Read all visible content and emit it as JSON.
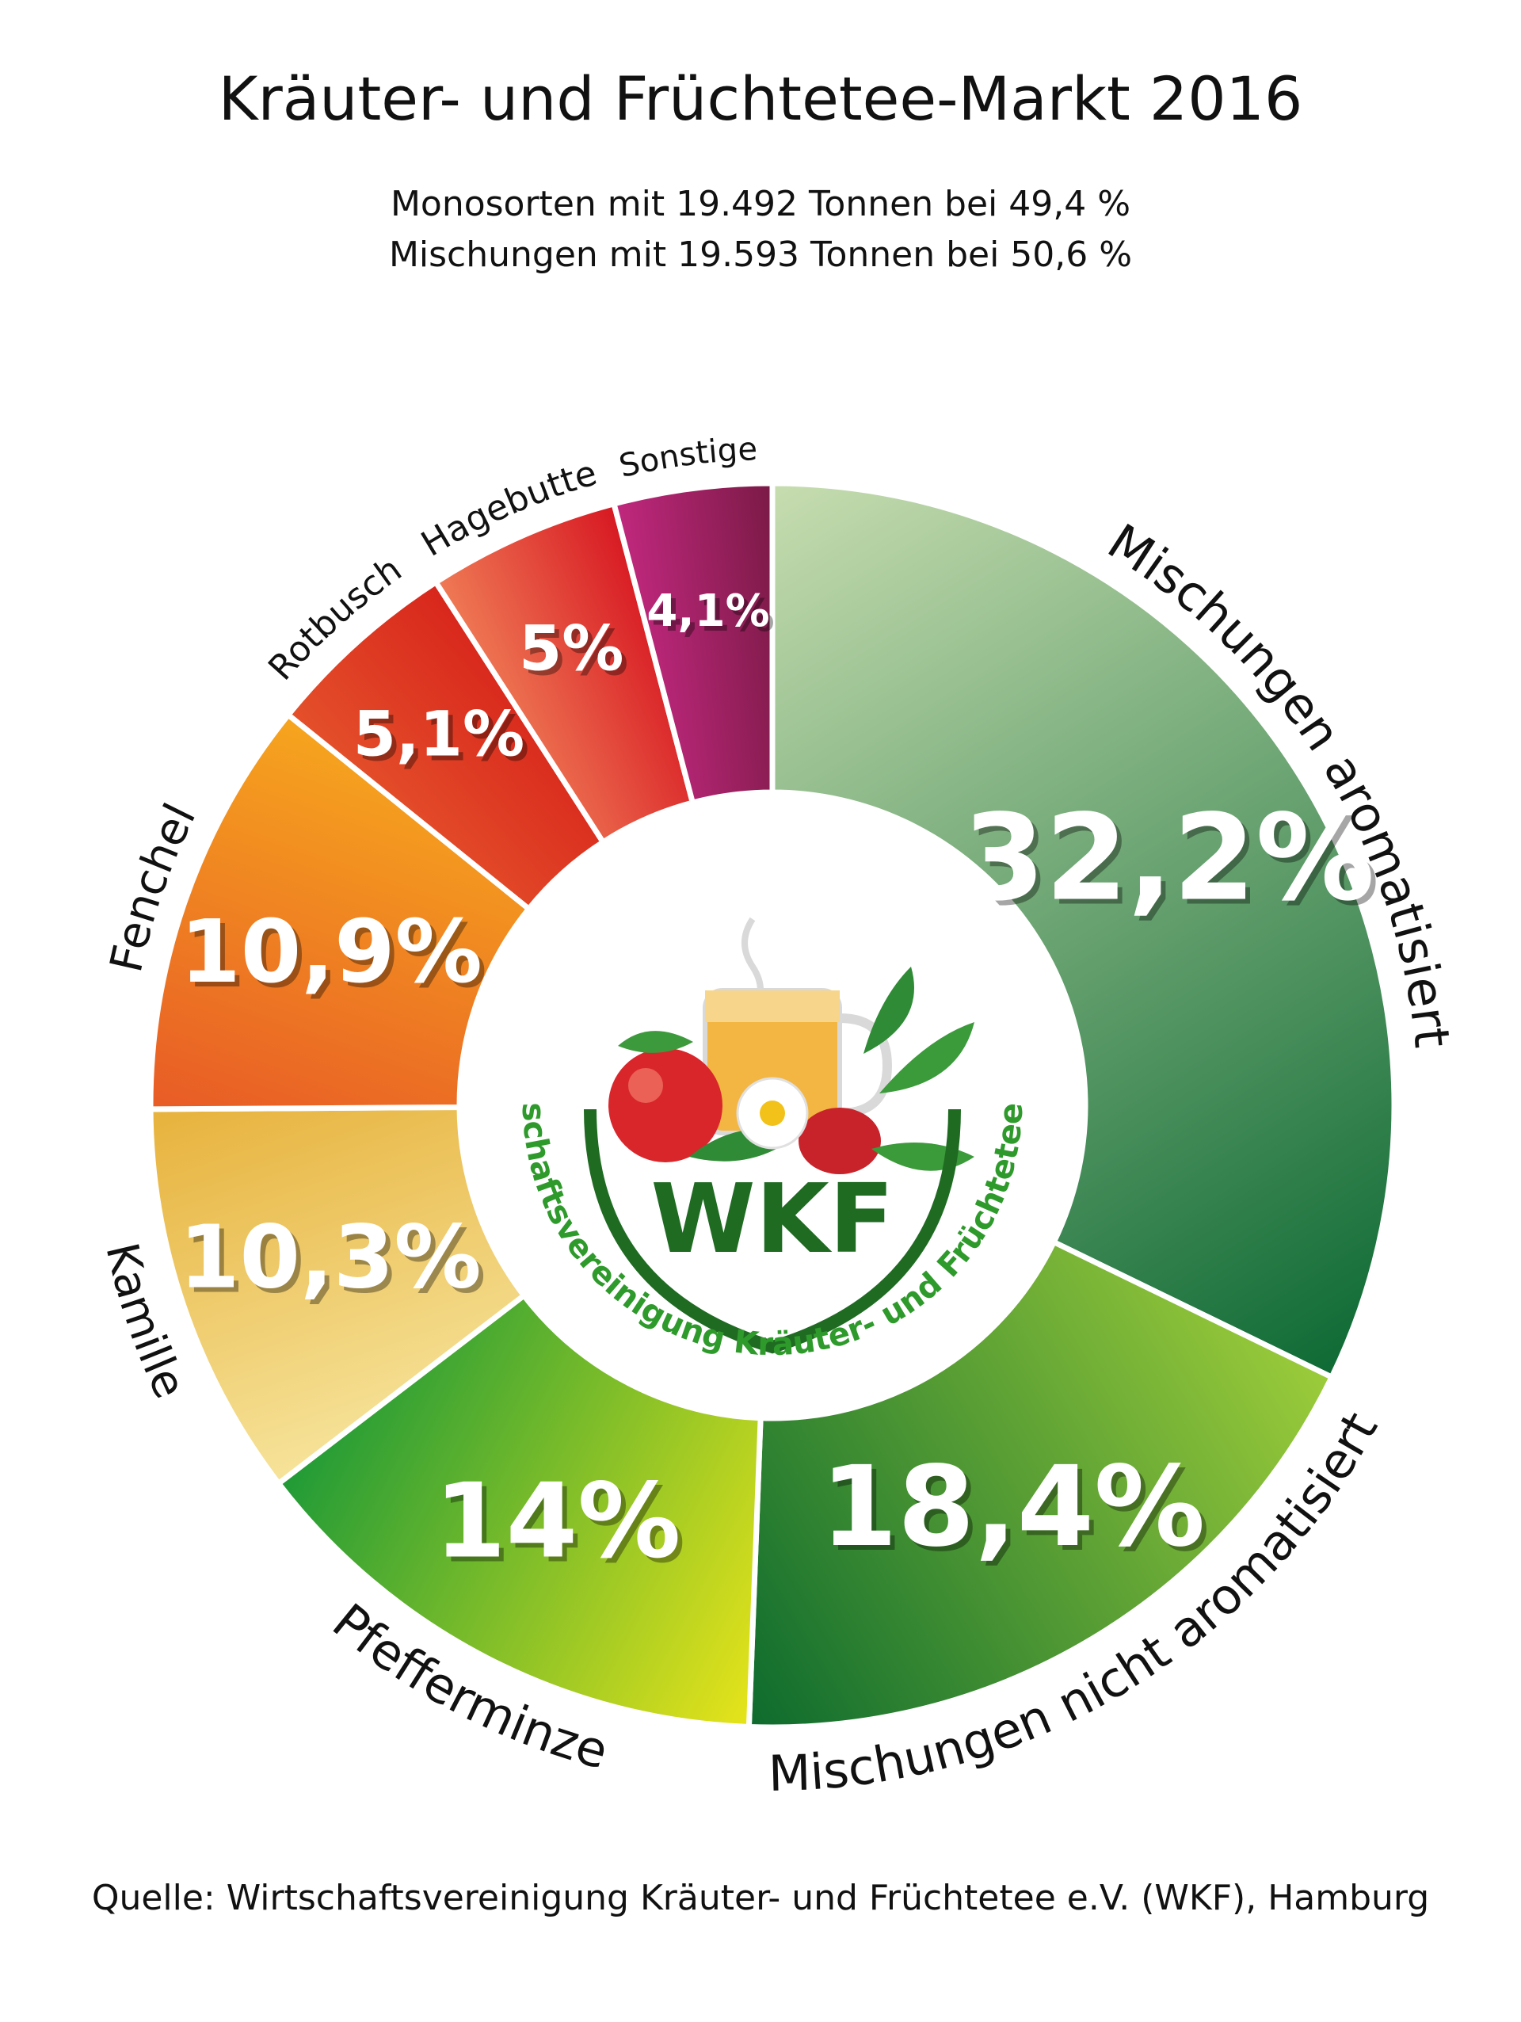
{
  "chart_data": {
    "type": "pie",
    "title": "Kräuter- und Früchtetee-Markt 2016",
    "subtitle_lines": [
      "Monosorten mit 19.492 Tonnen bei 49,4 %",
      "Mischungen mit 19.593 Tonnen bei 50,6 %"
    ],
    "source": "Quelle: Wirtschaftsvereinigung Kräuter- und Früchtetee e.V. (WKF), Hamburg",
    "slices": [
      {
        "name": "Mischungen aromatisiert",
        "value": 32.2,
        "label": "32,2%",
        "colors": [
          "#c7ddb0",
          "#0e6a34"
        ]
      },
      {
        "name": "Mischungen nicht aromatisiert",
        "value": 18.4,
        "label": "18,4%",
        "colors": [
          "#9ccc3a",
          "#0d6b2e"
        ]
      },
      {
        "name": "Pfefferminze",
        "value": 14,
        "label": "14%",
        "colors": [
          "#e7e41a",
          "#1f9a37"
        ]
      },
      {
        "name": "Kamille",
        "value": 10.3,
        "label": "10,3%",
        "colors": [
          "#f6e39a",
          "#e7b23c"
        ]
      },
      {
        "name": "Fenchel",
        "value": 10.9,
        "label": "10,9%",
        "colors": [
          "#e85b26",
          "#f6a51e"
        ]
      },
      {
        "name": "Rotbusch",
        "value": 5.1,
        "label": "5,1%",
        "colors": [
          "#e4502a",
          "#d8261c"
        ]
      },
      {
        "name": "Hagebutte",
        "value": 5,
        "label": "5%",
        "colors": [
          "#ef7a55",
          "#d71822"
        ]
      },
      {
        "name": "Sonstige",
        "value": 4.1,
        "label": "4,1%",
        "colors": [
          "#c1287e",
          "#7a1a46"
        ]
      }
    ]
  },
  "logo": {
    "arc_text": "Wirtschaftsvereinigung Kräuter- und Früchtetee e.V.",
    "abbr": "WKF"
  }
}
